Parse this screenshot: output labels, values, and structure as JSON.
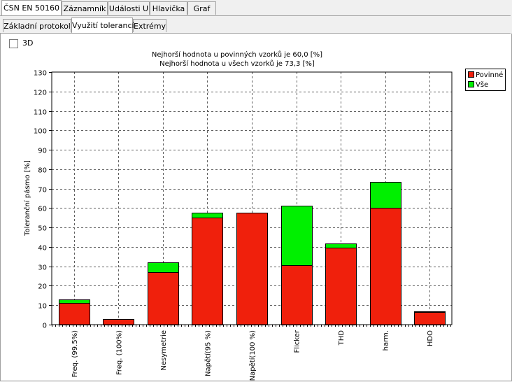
{
  "tabs_top": [
    "ČSN EN 50160",
    "Záznamník",
    "Události U",
    "Hlavička",
    "Graf"
  ],
  "tabs_sub": [
    "Základní protokol",
    "Využití tolerancí",
    "Extrémy"
  ],
  "checkbox_label": "3D",
  "chart_data": {
    "type": "bar",
    "stacked": true,
    "title_lines": [
      "Nejhorší hodnota u povinných vzorků je 60,0 [%]",
      "Nejhorší hodnota u všech vzorků je 73,3 [%]"
    ],
    "ylabel": "Toleranční pásmo [%]",
    "ylim": [
      0,
      130
    ],
    "yticks": [
      0,
      10,
      20,
      30,
      40,
      50,
      60,
      70,
      80,
      90,
      100,
      110,
      120,
      130
    ],
    "grid": true,
    "legend_position": "top-right",
    "categories": [
      "Freq. (99.5%)",
      "Freq. (100%)",
      "Nesymetrie",
      "Napětí(95 %)",
      "Napětí(100 %)",
      "Flicker",
      "THD",
      "harm.",
      "HDO"
    ],
    "series": [
      {
        "name": "Povinné",
        "color": "#f0200c",
        "values": [
          11,
          3,
          27,
          55,
          57.5,
          30.5,
          39.5,
          60,
          6.5
        ]
      },
      {
        "name": "Vše",
        "color": "#00f000",
        "values": [
          13,
          3,
          32,
          57.5,
          57.5,
          61.2,
          41.7,
          73.3,
          6.7
        ]
      }
    ]
  }
}
